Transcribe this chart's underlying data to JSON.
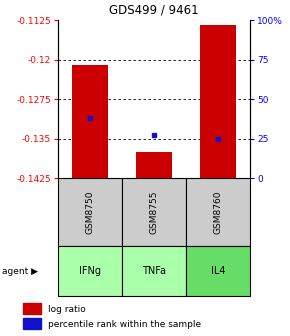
{
  "title": "GDS499 / 9461",
  "samples": [
    "GSM8750",
    "GSM8755",
    "GSM8760"
  ],
  "agents": [
    "IFNg",
    "TNFa",
    "IL4"
  ],
  "log_ratios": [
    -0.121,
    -0.1375,
    -0.1135
  ],
  "percentile_ranks": [
    0.38,
    0.27,
    0.25
  ],
  "y_min": -0.1425,
  "y_max": -0.1125,
  "y_ticks_left": [
    -0.1125,
    -0.12,
    -0.1275,
    -0.135,
    -0.1425
  ],
  "y_ticks_right_labels": [
    "100%",
    "75",
    "50",
    "25",
    "0"
  ],
  "y_ticks_right_pct": [
    100,
    75,
    50,
    25,
    0
  ],
  "bar_color": "#cc0000",
  "dot_color": "#1111cc",
  "agent_colors": [
    "#aaffaa",
    "#aaffaa",
    "#66dd66"
  ],
  "sample_bg": "#cccccc",
  "legend_bar_label": "log ratio",
  "legend_dot_label": "percentile rank within the sample"
}
